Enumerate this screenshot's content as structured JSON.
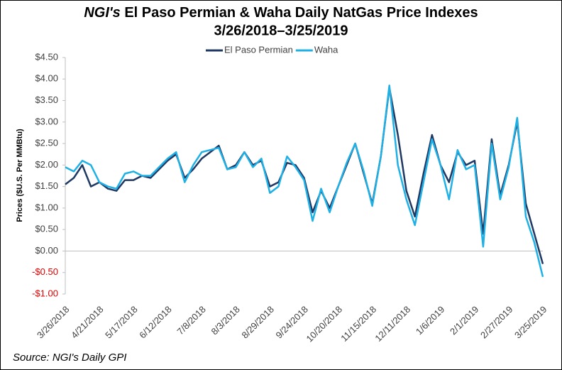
{
  "chart_data": {
    "type": "line",
    "title_italic": "NGI's",
    "title": "El Paso Permian & Waha Daily NatGas Price Indexes",
    "subtitle": "3/26/2018–3/25/2019",
    "y_label": "Prices ($U.S. Per MMBtu)",
    "source": "Source: NGI's Daily GPI",
    "categories": [
      "3/26/2018",
      null,
      null,
      null,
      "4/21/2018",
      null,
      null,
      null,
      "5/17/2018",
      null,
      null,
      null,
      "6/12/2018",
      null,
      null,
      null,
      "7/8/2018",
      null,
      null,
      null,
      "8/3/2018",
      null,
      null,
      null,
      "8/29/2018",
      null,
      null,
      null,
      "9/24/2018",
      null,
      null,
      null,
      "10/20/2018",
      null,
      null,
      null,
      "11/15/2018",
      null,
      null,
      null,
      "12/11/2018",
      null,
      null,
      null,
      "1/6/2019",
      null,
      null,
      null,
      "2/1/2019",
      null,
      null,
      null,
      "2/27/2019",
      null,
      null,
      null,
      "3/25/2019"
    ],
    "series": [
      {
        "name": "El Paso Permian",
        "color": "#1f3864",
        "values": [
          1.55,
          1.7,
          2.0,
          1.5,
          1.6,
          1.45,
          1.4,
          1.65,
          1.65,
          1.75,
          1.7,
          1.9,
          2.1,
          2.25,
          1.7,
          1.9,
          2.15,
          2.3,
          2.45,
          1.9,
          2.0,
          2.3,
          2.0,
          2.1,
          1.5,
          1.6,
          2.05,
          2.0,
          1.7,
          0.9,
          1.4,
          1.0,
          1.5,
          2.0,
          2.5,
          1.8,
          1.1,
          2.2,
          3.8,
          2.7,
          1.4,
          0.8,
          1.8,
          2.7,
          2.0,
          1.6,
          2.3,
          2.0,
          2.1,
          0.4,
          2.6,
          1.3,
          2.0,
          3.0,
          1.1,
          0.4,
          -0.3
        ]
      },
      {
        "name": "Waha",
        "color": "#1fb1e6",
        "values": [
          1.95,
          1.85,
          2.1,
          2.0,
          1.6,
          1.5,
          1.45,
          1.8,
          1.85,
          1.75,
          1.75,
          1.95,
          2.15,
          2.3,
          1.6,
          2.0,
          2.3,
          2.35,
          2.4,
          1.9,
          1.95,
          2.3,
          1.95,
          2.15,
          1.35,
          1.5,
          2.2,
          1.95,
          1.65,
          0.7,
          1.45,
          0.9,
          1.5,
          2.05,
          2.5,
          1.85,
          1.05,
          2.2,
          3.85,
          2.0,
          1.2,
          0.6,
          1.6,
          2.6,
          2.0,
          1.2,
          2.35,
          1.9,
          2.0,
          0.1,
          2.5,
          1.2,
          1.95,
          3.1,
          0.8,
          0.2,
          -0.6
        ]
      }
    ],
    "ylim": [
      -1.0,
      4.5
    ],
    "yticks": [
      {
        "value": -1.0,
        "label": "-$1.00"
      },
      {
        "value": -0.5,
        "label": "-$0.50"
      },
      {
        "value": 0,
        "label": "$0.00"
      },
      {
        "value": 0.5,
        "label": "$0.50"
      },
      {
        "value": 1.0,
        "label": "$1.00"
      },
      {
        "value": 1.5,
        "label": "$1.50"
      },
      {
        "value": 2.0,
        "label": "$2.00"
      },
      {
        "value": 2.5,
        "label": "$2.50"
      },
      {
        "value": 3.0,
        "label": "$3.00"
      },
      {
        "value": 3.5,
        "label": "$3.50"
      },
      {
        "value": 4.0,
        "label": "$4.00"
      },
      {
        "value": 4.5,
        "label": "$4.50"
      }
    ],
    "negative_tick_color": "#e00000",
    "legend": "top"
  }
}
